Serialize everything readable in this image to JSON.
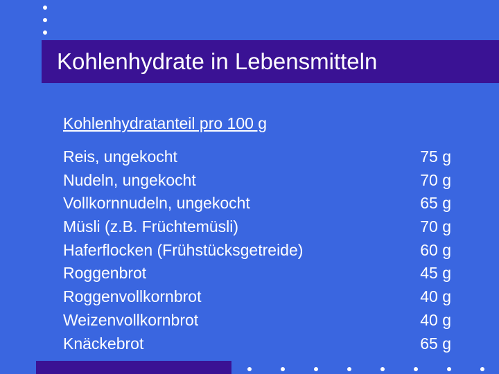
{
  "slide": {
    "title": "Kohlenhydrate in Lebensmitteln",
    "subheading": "Kohlenhydratanteil pro 100 g",
    "items": [
      {
        "name": "Reis, ungekocht",
        "amount": "75 g"
      },
      {
        "name": "Nudeln, ungekocht",
        "amount": "70 g"
      },
      {
        "name": "Vollkornnudeln, ungekocht",
        "amount": "65 g"
      },
      {
        "name": "Müsli (z.B. Früchtemüsli)",
        "amount": "70 g"
      },
      {
        "name": "Haferflocken (Frühstücksgetreide)",
        "amount": "60 g"
      },
      {
        "name": "Roggenbrot",
        "amount": "45 g"
      },
      {
        "name": "Roggenvollkornbrot",
        "amount": "40 g"
      },
      {
        "name": "Weizenvollkornbrot",
        "amount": "40 g"
      },
      {
        "name": "Knäckebrot",
        "amount": "65 g"
      }
    ]
  },
  "colors": {
    "background": "#3a66e0",
    "accent_bar": "#3a1294",
    "text": "#ffffff"
  }
}
